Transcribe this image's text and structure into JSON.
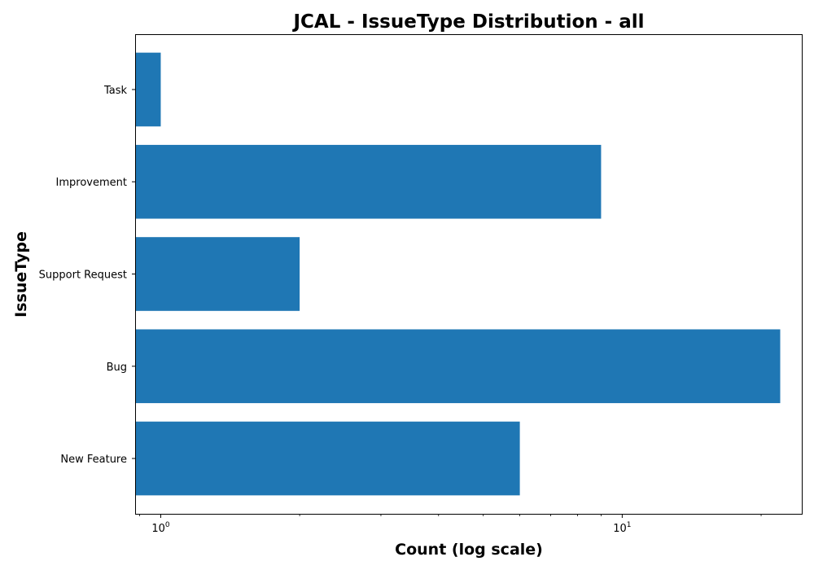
{
  "chart_data": {
    "type": "bar",
    "orientation": "horizontal",
    "title": "JCAL - IssueType Distribution - all",
    "xlabel": "Count (log scale)",
    "ylabel": "IssueType",
    "x_scale": "log",
    "xlim": [
      0.88,
      24.5
    ],
    "categories": [
      "New Feature",
      "Bug",
      "Support Request",
      "Improvement",
      "Task"
    ],
    "values": [
      6,
      22,
      2,
      9,
      1
    ],
    "x_ticks": [
      {
        "value": 1,
        "base": "10",
        "exp": "0"
      },
      {
        "value": 10,
        "base": "10",
        "exp": "1"
      }
    ],
    "bar_color": "#1f77b4",
    "grid": false,
    "legend": "none"
  }
}
